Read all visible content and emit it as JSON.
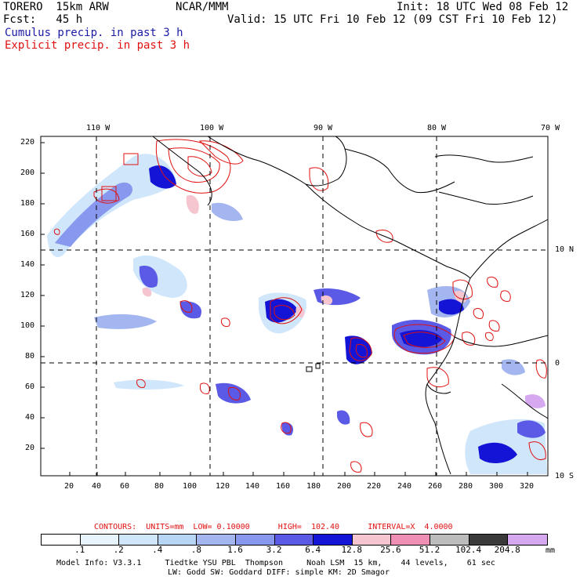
{
  "header": {
    "model": "TORERO  15km ARW",
    "org": "NCAR/MMM",
    "init": "Init: 18 UTC Wed 08 Feb 12",
    "fcst": "Fcst:   45 h",
    "valid": "Valid: 15 UTC Fri 10 Feb 12 (09 CST Fri 10 Feb 12)",
    "line1": "Cumulus precip. in past 3 h",
    "line2": "Explicit precip. in past 3 h"
  },
  "colors": {
    "cumulus": "#1a1aa6",
    "explicit": "#e01010",
    "contour": "#e01010",
    "coast": "#000000"
  },
  "axes": {
    "lon_top": [
      "110 W",
      "100 W",
      "90 W",
      "80 W",
      "70 W"
    ],
    "lat_right": [
      "10 N",
      "0",
      "10 S"
    ],
    "y_left": [
      "220",
      "200",
      "180",
      "160",
      "140",
      "120",
      "100",
      "80",
      "60",
      "40",
      "20"
    ],
    "x_bottom": [
      "20",
      "40",
      "60",
      "80",
      "100",
      "120",
      "140",
      "160",
      "180",
      "200",
      "220",
      "240",
      "260",
      "280",
      "300",
      "320"
    ]
  },
  "contours_note": "CONTOURS:  UNITS=mm  LOW= 0.10000      HIGH=  102.40      INTERVAL=X  4.0000",
  "legend": {
    "labels": [
      ".1",
      ".2",
      ".4",
      ".8",
      "1.6",
      "3.2",
      "6.4",
      "12.8",
      "25.6",
      "51.2",
      "102.4",
      "204.8"
    ],
    "units": "mm",
    "colors": [
      "#ffffff",
      "#e8f4fc",
      "#cfe6fb",
      "#b7d6f6",
      "#a4b6f0",
      "#8898ee",
      "#5a5ae6",
      "#1414d6",
      "#f5c6d0",
      "#f08fb6",
      "#bcbcbc",
      "#3a3a3a",
      "#d6a8f0"
    ]
  },
  "footer": {
    "line1": "Model Info: V3.3.1     Tiedtke YSU PBL  Thompson     Noah LSM  15 km,    44 levels,    61 sec",
    "line2": "LW: Godd SW: Goddard DIFF: simple KM: 2D Smagor"
  }
}
